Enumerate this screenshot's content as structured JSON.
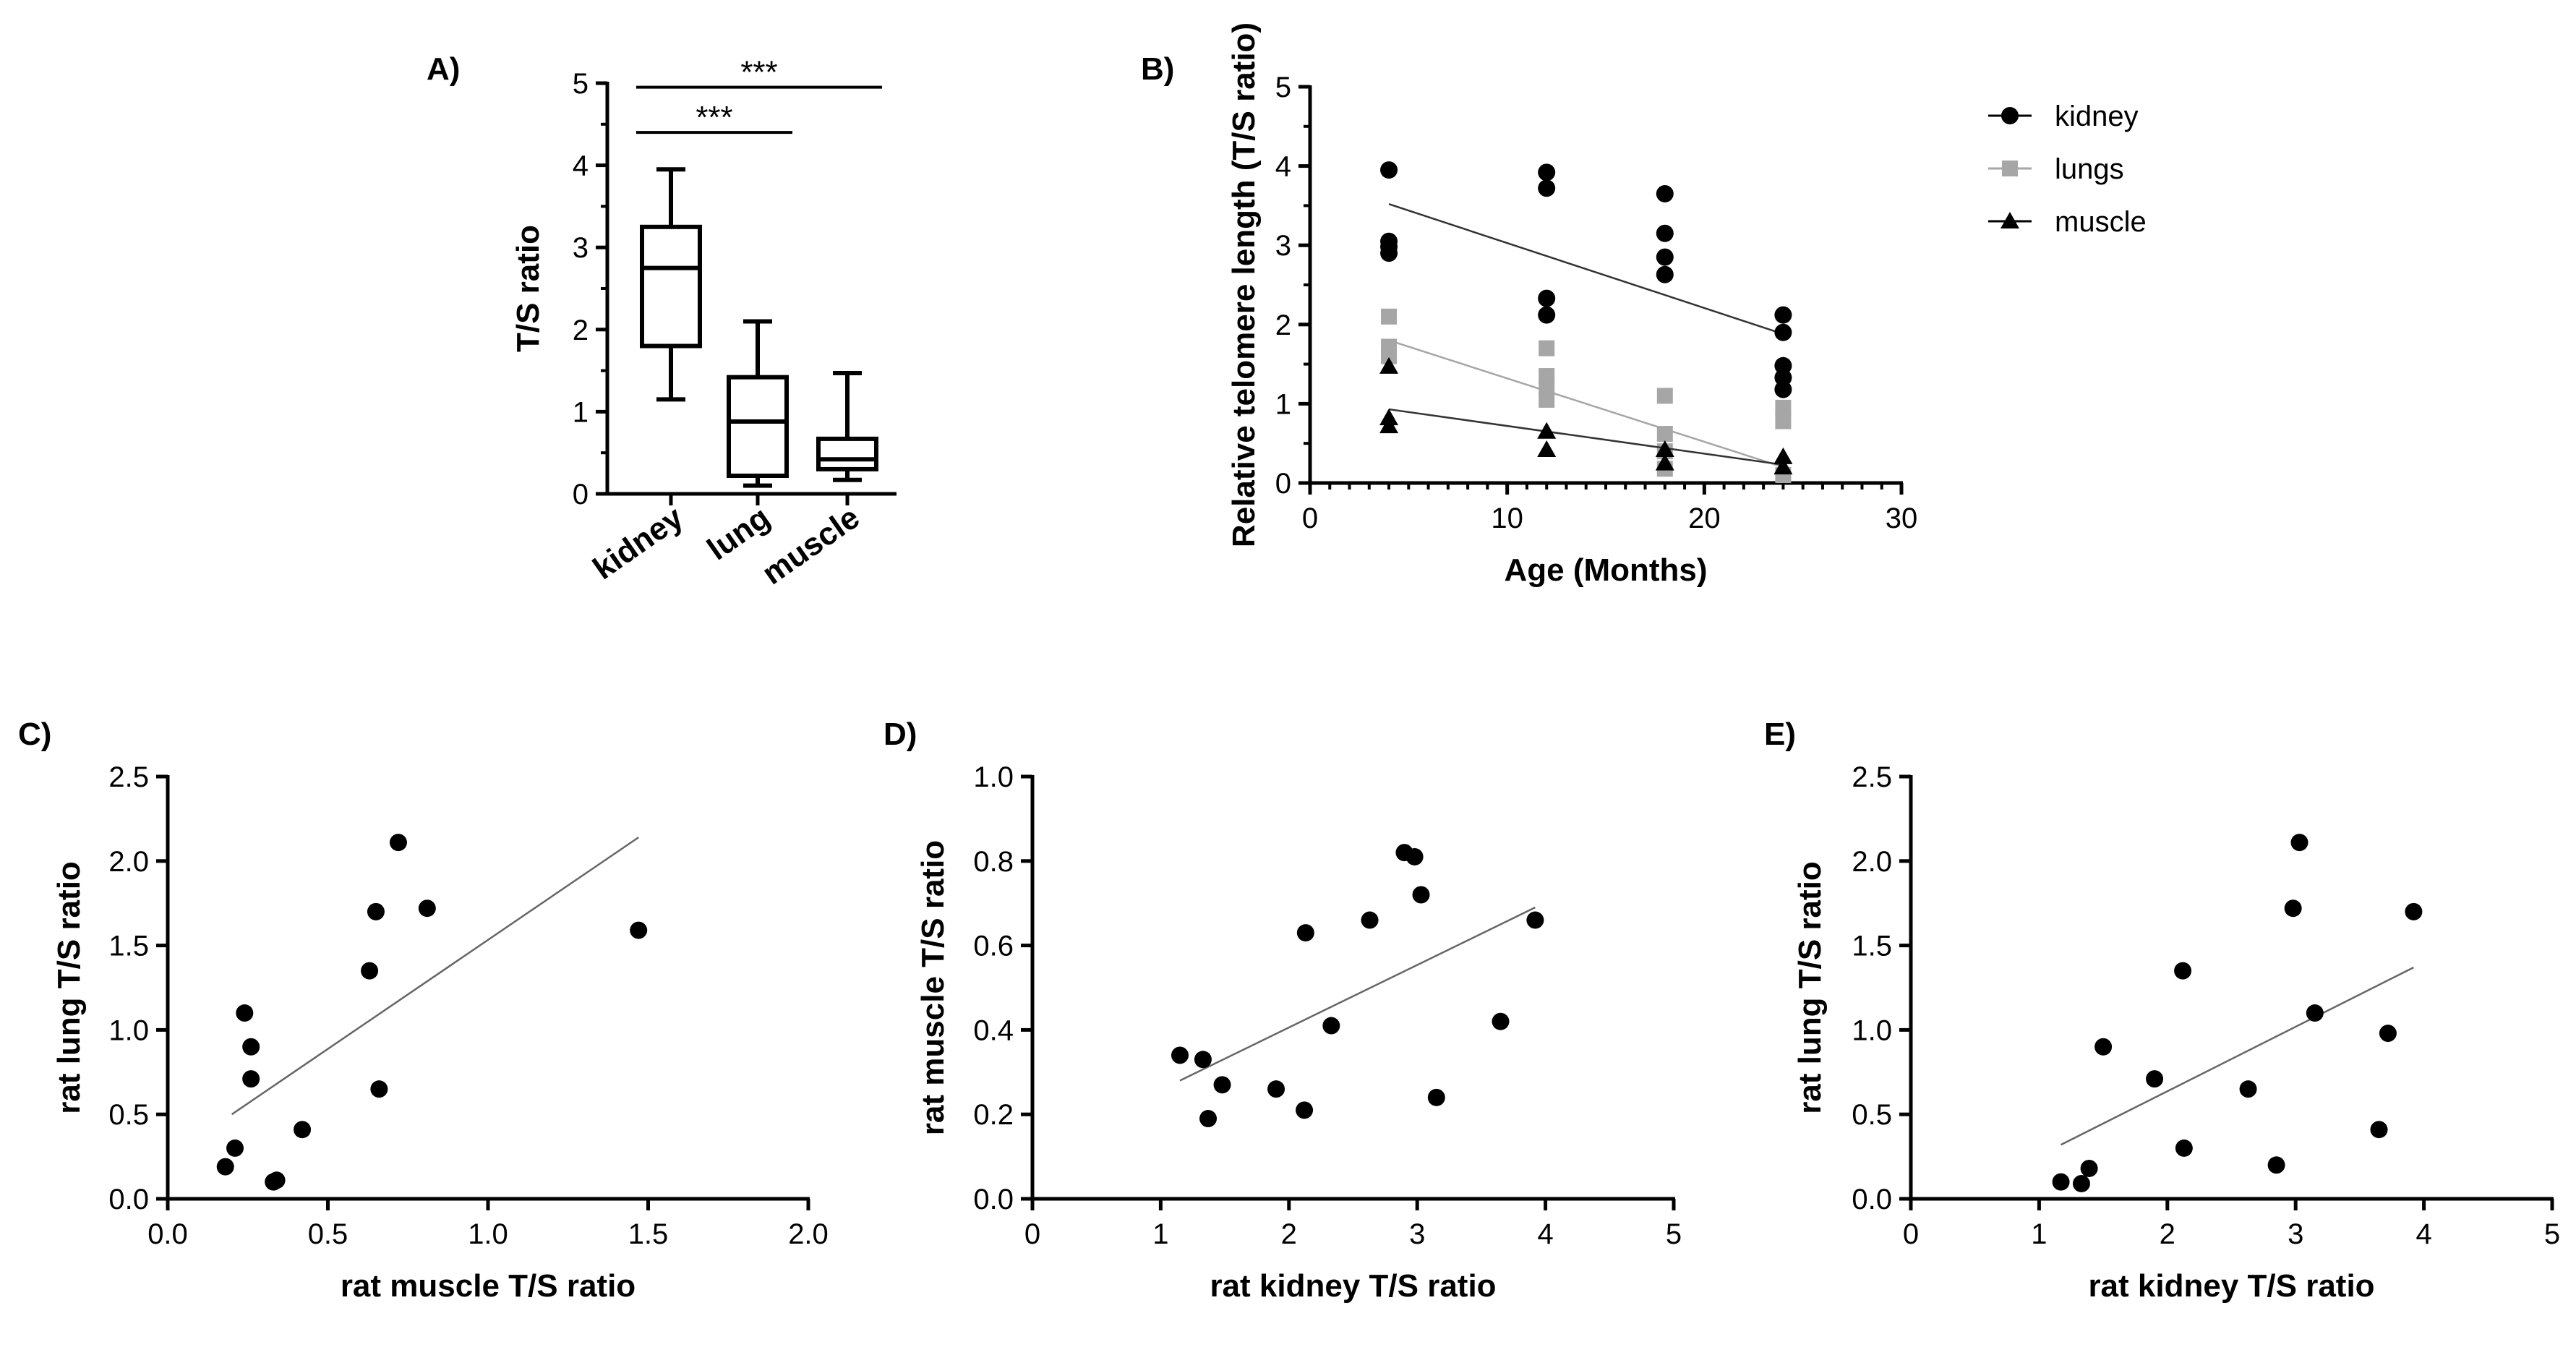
{
  "chart_data": [
    {
      "panel": "A)",
      "type": "box",
      "ylabel": "T/S ratio",
      "ylim": [
        0,
        5
      ],
      "yticks": [
        "0",
        "1",
        "2",
        "3",
        "4",
        "5"
      ],
      "categories": [
        "kidney",
        "lung",
        "muscle"
      ],
      "boxes": [
        {
          "name": "kidney",
          "min": 1.15,
          "q1": 1.8,
          "median": 2.75,
          "q3": 3.25,
          "max": 3.95
        },
        {
          "name": "lung",
          "min": 0.1,
          "q1": 0.22,
          "median": 0.88,
          "q3": 1.42,
          "max": 2.1
        },
        {
          "name": "muscle",
          "min": 0.17,
          "q1": 0.3,
          "median": 0.42,
          "q3": 0.67,
          "max": 1.47
        }
      ],
      "significance": [
        {
          "from": "kidney",
          "to": "lung",
          "label": "***",
          "y": 4.4
        },
        {
          "from": "kidney",
          "to": "muscle",
          "label": "***",
          "y": 4.95
        }
      ]
    },
    {
      "panel": "B)",
      "type": "scatter",
      "xlabel": "Age (Months)",
      "ylabel": "Relative telomere length (T/S ratio)",
      "xlim": [
        0,
        30
      ],
      "ylim": [
        0,
        5
      ],
      "xticks": [
        "0",
        "10",
        "20",
        "30"
      ],
      "yticks": [
        "0",
        "1",
        "2",
        "3",
        "4",
        "5"
      ],
      "series": [
        {
          "name": "kidney",
          "color": "#000000",
          "marker": "circle",
          "x": [
            4,
            4,
            4,
            4,
            12,
            12,
            12,
            12,
            18,
            18,
            18,
            18,
            24,
            24,
            24,
            24,
            24
          ],
          "y": [
            3.95,
            3.05,
            2.98,
            2.9,
            3.92,
            3.72,
            2.33,
            2.12,
            3.65,
            3.15,
            2.85,
            2.63,
            1.9,
            1.48,
            1.33,
            1.18,
            2.12
          ],
          "fit": [
            [
              4,
              3.52
            ],
            [
              24,
              1.88
            ]
          ]
        },
        {
          "name": "lungs",
          "color": "#a6a6a6",
          "marker": "square",
          "x": [
            4,
            4,
            4,
            12,
            12,
            12,
            12,
            18,
            18,
            18,
            18,
            24,
            24,
            24
          ],
          "y": [
            2.1,
            1.72,
            1.6,
            1.7,
            1.35,
            1.2,
            1.05,
            1.1,
            0.62,
            0.4,
            0.18,
            0.95,
            0.78,
            0.1
          ],
          "fit": [
            [
              4,
              1.8
            ],
            [
              24,
              0.2
            ]
          ]
        },
        {
          "name": "muscle",
          "color": "#000000",
          "marker": "triangle",
          "x": [
            4,
            4,
            4,
            12,
            12,
            18,
            18,
            24,
            24
          ],
          "y": [
            1.47,
            0.82,
            0.72,
            0.65,
            0.42,
            0.42,
            0.25,
            0.33,
            0.2
          ],
          "fit": [
            [
              4,
              0.93
            ],
            [
              24,
              0.23
            ]
          ]
        }
      ],
      "legend": [
        "kidney",
        "lungs",
        "muscle"
      ]
    },
    {
      "panel": "C)",
      "type": "scatter",
      "xlabel": "rat muscle T/S ratio",
      "ylabel": "rat lung T/S  ratio",
      "xlim": [
        0,
        2
      ],
      "ylim": [
        0,
        2.5
      ],
      "xticks": [
        "0.0",
        "0.5",
        "1.0",
        "1.5",
        "2.0"
      ],
      "yticks": [
        "0.0",
        "0.5",
        "1.0",
        "1.5",
        "2.0",
        "2.5"
      ],
      "x": [
        0.18,
        0.21,
        0.24,
        0.26,
        0.26,
        0.33,
        0.34,
        0.42,
        0.63,
        0.65,
        0.66,
        0.72,
        0.81,
        1.47
      ],
      "y": [
        0.19,
        0.3,
        1.1,
        0.9,
        0.71,
        0.1,
        0.11,
        0.41,
        1.35,
        1.7,
        0.65,
        2.11,
        1.72,
        1.59
      ],
      "fit": [
        [
          0.2,
          0.5
        ],
        [
          1.47,
          2.14
        ]
      ]
    },
    {
      "panel": "D)",
      "type": "scatter",
      "xlabel": "rat kidney T/S ratio",
      "ylabel": "rat muscle T/S ratio",
      "xlim": [
        0,
        5
      ],
      "ylim": [
        0,
        1.0
      ],
      "xticks": [
        "0",
        "1",
        "2",
        "3",
        "4",
        "5"
      ],
      "yticks": [
        "0.0",
        "0.2",
        "0.4",
        "0.6",
        "0.8",
        "1.0"
      ],
      "x": [
        1.15,
        1.33,
        1.37,
        1.48,
        1.9,
        2.12,
        2.13,
        2.33,
        2.63,
        2.9,
        2.98,
        3.03,
        3.15,
        3.65,
        3.92
      ],
      "y": [
        0.34,
        0.33,
        0.19,
        0.27,
        0.26,
        0.21,
        0.63,
        0.41,
        0.66,
        0.82,
        0.81,
        0.72,
        0.24,
        0.42,
        0.66
      ],
      "fit": [
        [
          1.15,
          0.28
        ],
        [
          3.92,
          0.69
        ]
      ]
    },
    {
      "panel": "E)",
      "type": "scatter",
      "xlabel": "rat kidney T/S ratio",
      "ylabel": "rat lung T/S  ratio",
      "xlim": [
        0,
        5
      ],
      "ylim": [
        0,
        2.5
      ],
      "xticks": [
        "0",
        "1",
        "2",
        "3",
        "4",
        "5"
      ],
      "yticks": [
        "0.0",
        "0.5",
        "1.0",
        "1.5",
        "2.0",
        "2.5"
      ],
      "x": [
        1.17,
        1.33,
        1.39,
        1.5,
        1.9,
        2.12,
        2.13,
        2.63,
        2.85,
        2.98,
        3.03,
        3.15,
        3.65,
        3.72,
        3.92
      ],
      "y": [
        0.1,
        0.09,
        0.18,
        0.9,
        0.71,
        1.35,
        0.3,
        0.65,
        0.2,
        1.72,
        2.11,
        1.1,
        0.41,
        0.98,
        1.7
      ],
      "fit": [
        [
          1.17,
          0.32
        ],
        [
          3.92,
          1.37
        ]
      ]
    }
  ]
}
